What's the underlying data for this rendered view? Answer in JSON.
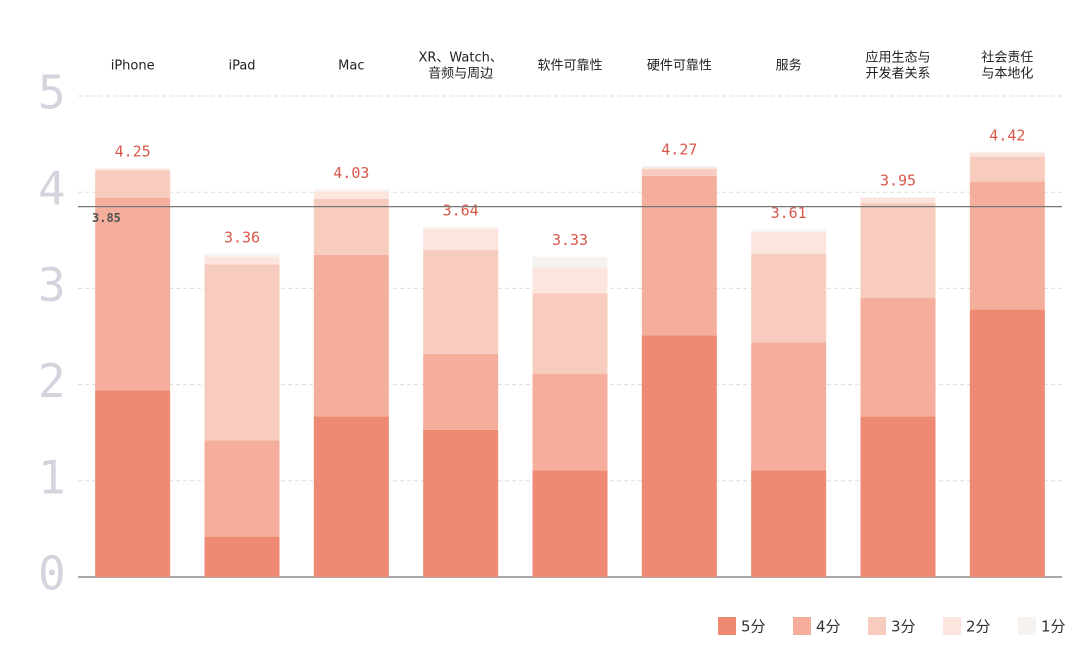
{
  "chart_data": {
    "type": "stacked-bar",
    "categories": [
      [
        "iPhone"
      ],
      [
        "iPad"
      ],
      [
        "Mac"
      ],
      [
        "XR、Watch、",
        "音频与周边"
      ],
      [
        "软件可靠性"
      ],
      [
        "硬件可靠性"
      ],
      [
        "服务"
      ],
      [
        "应用生态与",
        "开发者关系"
      ],
      [
        "社会责任",
        "与本地化"
      ]
    ],
    "series": [
      {
        "name": "5分",
        "color": "#ef8a72",
        "values": [
          1.94,
          0.42,
          1.67,
          1.53,
          1.11,
          2.51,
          1.11,
          1.67,
          2.78
        ]
      },
      {
        "name": "4分",
        "color": "#f4ae9b",
        "values": [
          2.0,
          1.0,
          1.68,
          0.79,
          1.0,
          1.66,
          1.33,
          1.23,
          1.33
        ]
      },
      {
        "name": "3分",
        "color": "#f8cbbf",
        "values": [
          0.29,
          1.83,
          0.58,
          1.08,
          0.84,
          0.07,
          0.92,
          0.99,
          0.26
        ]
      },
      {
        "name": "2分",
        "color": "#fbe5dd",
        "values": [
          0.01,
          0.08,
          0.08,
          0.22,
          0.27,
          0.02,
          0.23,
          0.05,
          0.04
        ]
      },
      {
        "name": "1分",
        "color": "#f5f2f0",
        "values": [
          0.01,
          0.03,
          0.02,
          0.02,
          0.11,
          0.01,
          0.02,
          0.01,
          0.01
        ]
      }
    ],
    "totals": [
      4.25,
      3.36,
      4.03,
      3.64,
      3.33,
      4.27,
      3.61,
      3.95,
      4.42
    ],
    "reference_line": 3.85,
    "ylim": [
      0,
      5
    ],
    "yticks": [
      0,
      1,
      2,
      3,
      4,
      5
    ],
    "grid": true,
    "legend": "bottom-right"
  }
}
